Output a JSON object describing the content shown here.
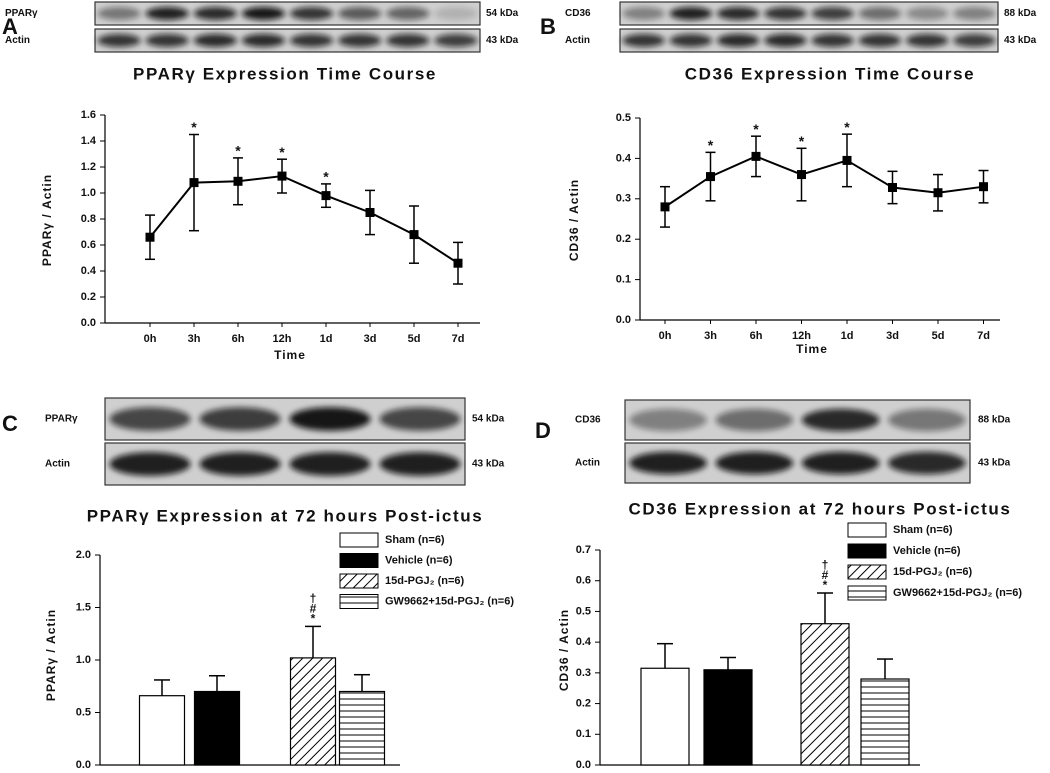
{
  "chart_data": [
    {
      "type": "line",
      "panel": "A",
      "blot": [
        {
          "label": "PPARγ",
          "size": "54 kDa"
        },
        {
          "label": "Actin",
          "size": "43 kDa"
        }
      ],
      "title": "PPARγ Expression Time Course",
      "xlabel": "Time",
      "ylabel": "PPARγ / Actin",
      "categories": [
        "0h",
        "3h",
        "6h",
        "12h",
        "1d",
        "3d",
        "5d",
        "7d"
      ],
      "values": [
        0.66,
        1.08,
        1.09,
        1.13,
        0.98,
        0.85,
        0.68,
        0.46
      ],
      "errors": [
        0.17,
        0.37,
        0.18,
        0.13,
        0.09,
        0.17,
        0.22,
        0.16
      ],
      "annotations": [
        null,
        "*",
        "*",
        "*",
        "*",
        null,
        null,
        null
      ],
      "color": "#000000",
      "ylim": [
        0,
        1.6
      ],
      "yticks": [
        {
          "value": 0,
          "label": "0.0"
        },
        0.2,
        0.4,
        0.6,
        0.8,
        {
          "value": 1,
          "label": "1.0"
        },
        1.2,
        1.4,
        1.6
      ]
    },
    {
      "type": "line",
      "panel": "B",
      "blot": [
        {
          "label": "CD36",
          "size": "88 kDa"
        },
        {
          "label": "Actin",
          "size": "43 kDa"
        }
      ],
      "title": "CD36 Expression Time Course",
      "xlabel": "Time",
      "ylabel": "CD36 / Actin",
      "categories": [
        "0h",
        "3h",
        "6h",
        "12h",
        "1d",
        "3d",
        "5d",
        "7d"
      ],
      "values": [
        0.28,
        0.355,
        0.405,
        0.36,
        0.395,
        0.328,
        0.315,
        0.33
      ],
      "errors": [
        0.05,
        0.06,
        0.05,
        0.065,
        0.065,
        0.04,
        0.045,
        0.04
      ],
      "annotations": [
        null,
        "*",
        "*",
        "*",
        "*",
        null,
        null,
        null
      ],
      "color": "#000000",
      "ylim": [
        0,
        0.5
      ],
      "yticks": [
        {
          "value": 0,
          "label": "0.0"
        },
        0.1,
        0.2,
        0.3,
        0.4,
        0.5
      ]
    },
    {
      "type": "bar",
      "panel": "C",
      "blot": [
        {
          "label": "PPARγ",
          "size": "54 kDa"
        },
        {
          "label": "Actin",
          "size": "43 kDa"
        }
      ],
      "title": "PPARγ Expression at 72 hours Post-ictus",
      "ylabel": "PPARγ / Actin",
      "series": [
        {
          "name": "Sham (n=6)",
          "fill": "white",
          "values": [
            0.66
          ],
          "errors": [
            0.15
          ]
        },
        {
          "name": "Vehicle (n=6)",
          "fill": "black",
          "values": [
            0.7
          ],
          "errors": [
            0.15
          ]
        },
        {
          "name": "15d-PGJ₂ (n=6)",
          "fill": "diagonal",
          "values": [
            1.02
          ],
          "errors": [
            0.3
          ],
          "annotations": [
            "*",
            "#",
            "†"
          ]
        },
        {
          "name": "GW9662+15d-PGJ₂ (n=6)",
          "fill": "horizontal",
          "values": [
            0.7
          ],
          "errors": [
            0.16
          ]
        }
      ],
      "ylim": [
        0,
        2
      ],
      "yticks": [
        {
          "value": 0,
          "label": "0.0"
        },
        0.5,
        {
          "value": 1,
          "label": "1.0"
        },
        1.5,
        {
          "value": 2,
          "label": "2.0"
        }
      ]
    },
    {
      "type": "bar",
      "panel": "D",
      "blot": [
        {
          "label": "CD36",
          "size": "88 kDa"
        },
        {
          "label": "Actin",
          "size": "43 kDa"
        }
      ],
      "title": "CD36 Expression at 72 hours Post-ictus",
      "ylabel": "CD36 / Actin",
      "series": [
        {
          "name": "Sham (n=6)",
          "fill": "white",
          "values": [
            0.315
          ],
          "errors": [
            0.08
          ]
        },
        {
          "name": "Vehicle (n=6)",
          "fill": "black",
          "values": [
            0.31
          ],
          "errors": [
            0.04
          ]
        },
        {
          "name": "15d-PGJ₂ (n=6)",
          "fill": "diagonal",
          "values": [
            0.46
          ],
          "errors": [
            0.1
          ],
          "annotations": [
            "*",
            "#",
            "†"
          ]
        },
        {
          "name": "GW9662+15d-PGJ₂ (n=6)",
          "fill": "horizontal",
          "values": [
            0.28
          ],
          "errors": [
            0.065
          ]
        }
      ],
      "ylim": [
        0,
        0.7
      ],
      "yticks": [
        {
          "value": 0,
          "label": "0.0"
        },
        0.1,
        0.2,
        0.3,
        0.4,
        0.5,
        0.6,
        0.7
      ]
    }
  ]
}
